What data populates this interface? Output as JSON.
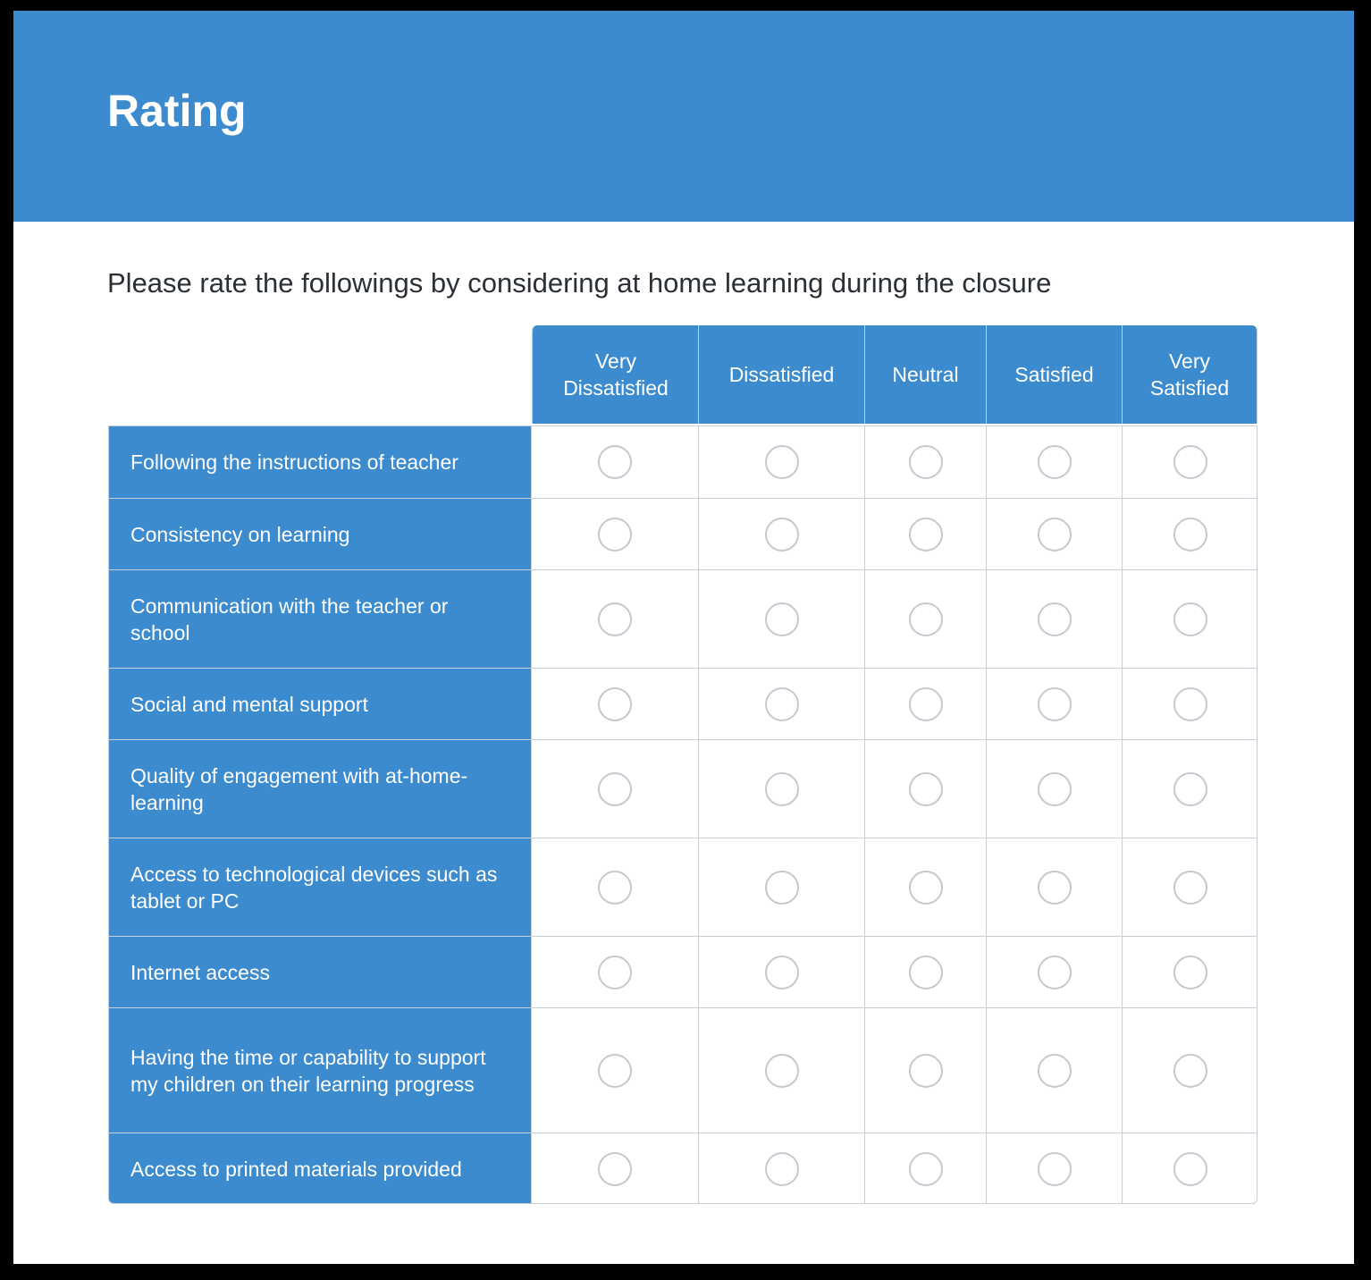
{
  "form": {
    "title": "Rating",
    "question": "Please rate the followings by considering at home learning during the closure"
  },
  "colors": {
    "accent": "#3b8bce",
    "background": "#ffffff",
    "border": "#c9cfd6",
    "radio_border": "#c4c9cf",
    "text_dark": "#2b3036"
  },
  "matrix": {
    "columns": [
      "Very Dissatisfied",
      "Dissatisfied",
      "Neutral",
      "Satisfied",
      "Very Satisfied"
    ],
    "rows": [
      "Following the instructions of teacher",
      "Consistency on learning",
      "Communication with the teacher or school",
      "Social and mental support",
      "Quality of engagement with at-home-learning",
      "Access to technological devices such as tablet or PC",
      "Internet access",
      "Having the time or capability to support my children on their learning progress",
      "Access to printed materials provided"
    ]
  }
}
